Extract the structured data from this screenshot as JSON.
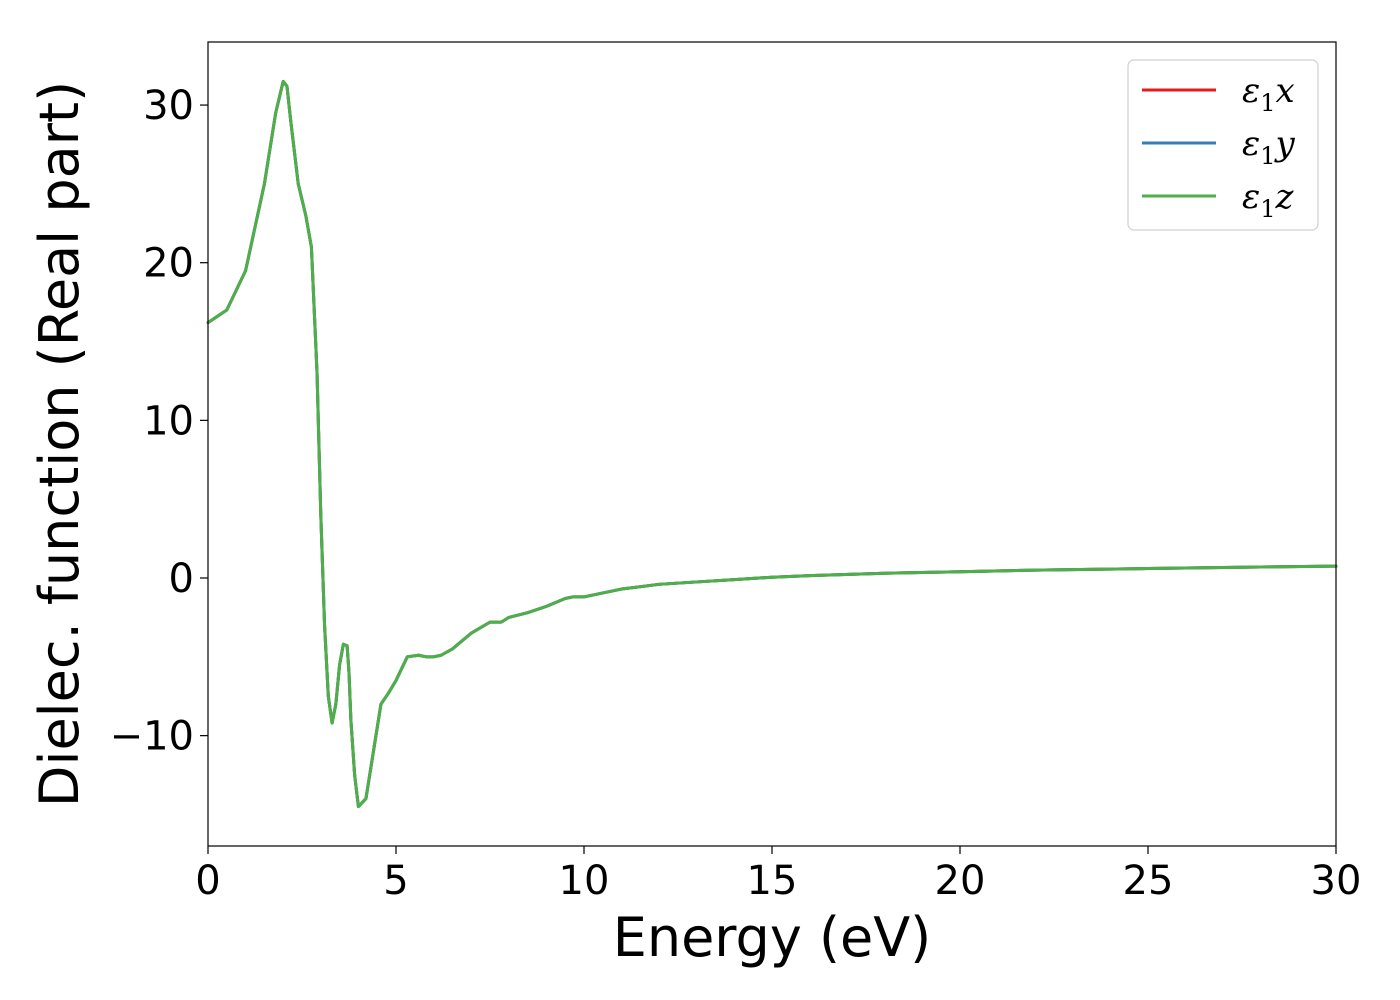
{
  "chart_data": {
    "type": "line",
    "title": "",
    "xlabel": "Energy (eV)",
    "ylabel": "Dielec. function (Real part)",
    "xlim": [
      0,
      30
    ],
    "ylim": [
      -17,
      34
    ],
    "x_ticks": [
      0,
      5,
      10,
      15,
      20,
      25,
      30
    ],
    "y_ticks": [
      -10,
      0,
      10,
      20,
      30
    ],
    "x_tick_labels": [
      "0",
      "5",
      "10",
      "15",
      "20",
      "25",
      "30"
    ],
    "y_tick_labels": [
      "−10",
      "0",
      "10",
      "20",
      "30"
    ],
    "grid": false,
    "legend_position": "top-right",
    "x": [
      0,
      0.5,
      1.0,
      1.5,
      1.8,
      2.0,
      2.1,
      2.2,
      2.4,
      2.6,
      2.75,
      2.9,
      3.0,
      3.1,
      3.2,
      3.3,
      3.4,
      3.5,
      3.6,
      3.7,
      3.75,
      3.8,
      3.9,
      4.0,
      4.2,
      4.4,
      4.6,
      4.8,
      5.0,
      5.3,
      5.6,
      5.8,
      6.0,
      6.2,
      6.5,
      7.0,
      7.5,
      7.8,
      8.0,
      8.5,
      9.0,
      9.5,
      9.7,
      10.0,
      10.2,
      11.0,
      12.0,
      13.0,
      14.0,
      15.0,
      16.0,
      18.0,
      20.0,
      22.0,
      25.0,
      28.0,
      30.0
    ],
    "series": [
      {
        "name": "ε₁x",
        "label_base": "ε",
        "label_sub": "1",
        "label_tail": "x",
        "color": "#e41a1c",
        "values": [
          16.2,
          17.0,
          19.5,
          25.0,
          29.5,
          31.5,
          31.2,
          29.0,
          25.0,
          23.0,
          21.0,
          13.0,
          4.0,
          -3.0,
          -7.5,
          -9.2,
          -8.0,
          -5.5,
          -4.2,
          -4.3,
          -6.0,
          -9.0,
          -12.5,
          -14.5,
          -14.0,
          -11.0,
          -8.0,
          -7.3,
          -6.5,
          -5.0,
          -4.9,
          -5.0,
          -5.0,
          -4.9,
          -4.5,
          -3.5,
          -2.8,
          -2.8,
          -2.5,
          -2.2,
          -1.8,
          -1.3,
          -1.2,
          -1.2,
          -1.1,
          -0.7,
          -0.4,
          -0.25,
          -0.1,
          0.05,
          0.15,
          0.3,
          0.4,
          0.5,
          0.6,
          0.7,
          0.75
        ]
      },
      {
        "name": "ε₁y",
        "label_base": "ε",
        "label_sub": "1",
        "label_tail": "y",
        "color": "#377eb8",
        "values": [
          16.2,
          17.0,
          19.5,
          25.0,
          29.5,
          31.5,
          31.2,
          29.0,
          25.0,
          23.0,
          21.0,
          13.0,
          4.0,
          -3.0,
          -7.5,
          -9.2,
          -8.0,
          -5.5,
          -4.2,
          -4.3,
          -6.0,
          -9.0,
          -12.5,
          -14.5,
          -14.0,
          -11.0,
          -8.0,
          -7.3,
          -6.5,
          -5.0,
          -4.9,
          -5.0,
          -5.0,
          -4.9,
          -4.5,
          -3.5,
          -2.8,
          -2.8,
          -2.5,
          -2.2,
          -1.8,
          -1.3,
          -1.2,
          -1.2,
          -1.1,
          -0.7,
          -0.4,
          -0.25,
          -0.1,
          0.05,
          0.15,
          0.3,
          0.4,
          0.5,
          0.6,
          0.7,
          0.75
        ]
      },
      {
        "name": "ε₁z",
        "label_base": "ε",
        "label_sub": "1",
        "label_tail": "z",
        "color": "#4daf4a",
        "values": [
          16.2,
          17.0,
          19.5,
          25.0,
          29.5,
          31.5,
          31.2,
          29.0,
          25.0,
          23.0,
          21.0,
          13.0,
          4.0,
          -3.0,
          -7.5,
          -9.2,
          -8.0,
          -5.5,
          -4.2,
          -4.3,
          -6.0,
          -9.0,
          -12.5,
          -14.5,
          -14.0,
          -11.0,
          -8.0,
          -7.3,
          -6.5,
          -5.0,
          -4.9,
          -5.0,
          -5.0,
          -4.9,
          -4.5,
          -3.5,
          -2.8,
          -2.8,
          -2.5,
          -2.2,
          -1.8,
          -1.3,
          -1.2,
          -1.2,
          -1.1,
          -0.7,
          -0.4,
          -0.25,
          -0.1,
          0.05,
          0.15,
          0.3,
          0.4,
          0.5,
          0.6,
          0.7,
          0.75
        ]
      }
    ]
  }
}
